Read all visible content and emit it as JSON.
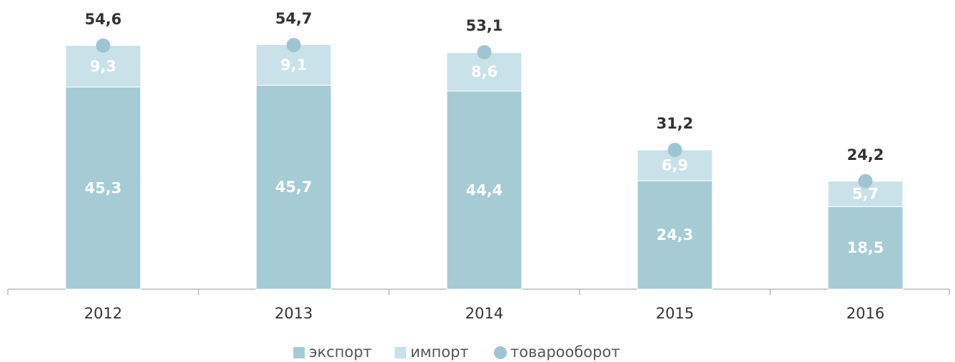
{
  "chart_data": {
    "type": "bar",
    "categories": [
      "2012",
      "2013",
      "2014",
      "2015",
      "2016"
    ],
    "series": [
      {
        "name": "экспорт",
        "color": "#a5cbd5",
        "values": [
          45.3,
          45.7,
          44.4,
          24.3,
          18.5
        ],
        "value_labels": [
          "45,3",
          "45,7",
          "44,4",
          "24,3",
          "18,5"
        ]
      },
      {
        "name": "импорт",
        "color": "#c9e1e8",
        "values": [
          9.3,
          9.1,
          8.6,
          6.9,
          5.7
        ],
        "value_labels": [
          "9,3",
          "9,1",
          "8,6",
          "6,9",
          "5,7"
        ]
      },
      {
        "name": "товарооборот",
        "type": "scatter",
        "color": "#9fc5d3",
        "values": [
          54.6,
          54.7,
          53.1,
          31.2,
          24.2
        ],
        "value_labels": [
          "54,6",
          "54,7",
          "53,1",
          "31,2",
          "24,2"
        ]
      }
    ]
  }
}
